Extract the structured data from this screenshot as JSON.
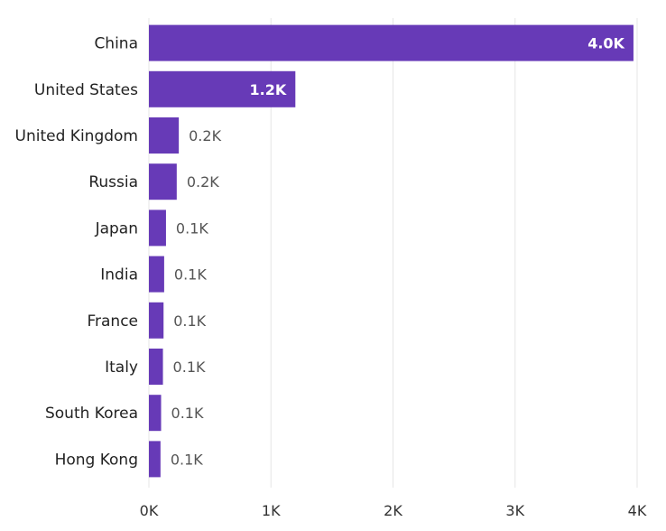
{
  "chart_data": {
    "type": "bar",
    "orientation": "horizontal",
    "categories": [
      "China",
      "United States",
      "United Kingdom",
      "Russia",
      "Japan",
      "India",
      "France",
      "Italy",
      "South Korea",
      "Hong Kong"
    ],
    "values": [
      3970,
      1200,
      245,
      228,
      140,
      125,
      120,
      115,
      100,
      95
    ],
    "value_labels": [
      "4.0K",
      "1.2K",
      "0.2K",
      "0.2K",
      "0.1K",
      "0.1K",
      "0.1K",
      "0.1K",
      "0.1K",
      "0.1K"
    ],
    "x_ticks": [
      0,
      1000,
      2000,
      3000,
      4000
    ],
    "x_tick_labels": [
      "0K",
      "1K",
      "2K",
      "3K",
      "4K"
    ],
    "xlim": [
      0,
      4000
    ],
    "grid": true,
    "legend": "none",
    "colors": {
      "bar": "#673ab7",
      "grid": "#e6e6e6"
    }
  }
}
